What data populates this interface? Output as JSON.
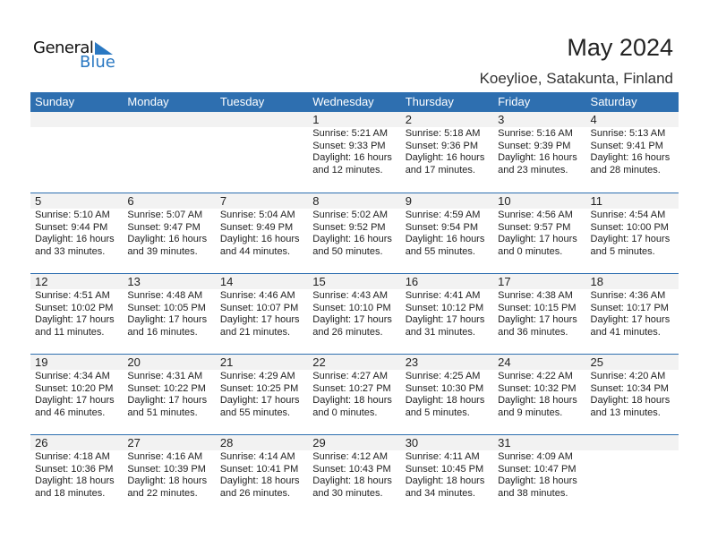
{
  "logo": {
    "line1": "General",
    "line2": "Blue"
  },
  "title": "May 2024",
  "location": "Koeylioe, Satakunta, Finland",
  "colors": {
    "accent": "#2e6fb0",
    "date_band": "#f2f2f2"
  },
  "weekdays": [
    "Sunday",
    "Monday",
    "Tuesday",
    "Wednesday",
    "Thursday",
    "Friday",
    "Saturday"
  ],
  "weeks": [
    [
      null,
      null,
      null,
      {
        "day": "1",
        "sunrise": "Sunrise: 5:21 AM",
        "sunset": "Sunset: 9:33 PM",
        "daylight1": "Daylight: 16 hours",
        "daylight2": "and 12 minutes."
      },
      {
        "day": "2",
        "sunrise": "Sunrise: 5:18 AM",
        "sunset": "Sunset: 9:36 PM",
        "daylight1": "Daylight: 16 hours",
        "daylight2": "and 17 minutes."
      },
      {
        "day": "3",
        "sunrise": "Sunrise: 5:16 AM",
        "sunset": "Sunset: 9:39 PM",
        "daylight1": "Daylight: 16 hours",
        "daylight2": "and 23 minutes."
      },
      {
        "day": "4",
        "sunrise": "Sunrise: 5:13 AM",
        "sunset": "Sunset: 9:41 PM",
        "daylight1": "Daylight: 16 hours",
        "daylight2": "and 28 minutes."
      }
    ],
    [
      {
        "day": "5",
        "sunrise": "Sunrise: 5:10 AM",
        "sunset": "Sunset: 9:44 PM",
        "daylight1": "Daylight: 16 hours",
        "daylight2": "and 33 minutes."
      },
      {
        "day": "6",
        "sunrise": "Sunrise: 5:07 AM",
        "sunset": "Sunset: 9:47 PM",
        "daylight1": "Daylight: 16 hours",
        "daylight2": "and 39 minutes."
      },
      {
        "day": "7",
        "sunrise": "Sunrise: 5:04 AM",
        "sunset": "Sunset: 9:49 PM",
        "daylight1": "Daylight: 16 hours",
        "daylight2": "and 44 minutes."
      },
      {
        "day": "8",
        "sunrise": "Sunrise: 5:02 AM",
        "sunset": "Sunset: 9:52 PM",
        "daylight1": "Daylight: 16 hours",
        "daylight2": "and 50 minutes."
      },
      {
        "day": "9",
        "sunrise": "Sunrise: 4:59 AM",
        "sunset": "Sunset: 9:54 PM",
        "daylight1": "Daylight: 16 hours",
        "daylight2": "and 55 minutes."
      },
      {
        "day": "10",
        "sunrise": "Sunrise: 4:56 AM",
        "sunset": "Sunset: 9:57 PM",
        "daylight1": "Daylight: 17 hours",
        "daylight2": "and 0 minutes."
      },
      {
        "day": "11",
        "sunrise": "Sunrise: 4:54 AM",
        "sunset": "Sunset: 10:00 PM",
        "daylight1": "Daylight: 17 hours",
        "daylight2": "and 5 minutes."
      }
    ],
    [
      {
        "day": "12",
        "sunrise": "Sunrise: 4:51 AM",
        "sunset": "Sunset: 10:02 PM",
        "daylight1": "Daylight: 17 hours",
        "daylight2": "and 11 minutes."
      },
      {
        "day": "13",
        "sunrise": "Sunrise: 4:48 AM",
        "sunset": "Sunset: 10:05 PM",
        "daylight1": "Daylight: 17 hours",
        "daylight2": "and 16 minutes."
      },
      {
        "day": "14",
        "sunrise": "Sunrise: 4:46 AM",
        "sunset": "Sunset: 10:07 PM",
        "daylight1": "Daylight: 17 hours",
        "daylight2": "and 21 minutes."
      },
      {
        "day": "15",
        "sunrise": "Sunrise: 4:43 AM",
        "sunset": "Sunset: 10:10 PM",
        "daylight1": "Daylight: 17 hours",
        "daylight2": "and 26 minutes."
      },
      {
        "day": "16",
        "sunrise": "Sunrise: 4:41 AM",
        "sunset": "Sunset: 10:12 PM",
        "daylight1": "Daylight: 17 hours",
        "daylight2": "and 31 minutes."
      },
      {
        "day": "17",
        "sunrise": "Sunrise: 4:38 AM",
        "sunset": "Sunset: 10:15 PM",
        "daylight1": "Daylight: 17 hours",
        "daylight2": "and 36 minutes."
      },
      {
        "day": "18",
        "sunrise": "Sunrise: 4:36 AM",
        "sunset": "Sunset: 10:17 PM",
        "daylight1": "Daylight: 17 hours",
        "daylight2": "and 41 minutes."
      }
    ],
    [
      {
        "day": "19",
        "sunrise": "Sunrise: 4:34 AM",
        "sunset": "Sunset: 10:20 PM",
        "daylight1": "Daylight: 17 hours",
        "daylight2": "and 46 minutes."
      },
      {
        "day": "20",
        "sunrise": "Sunrise: 4:31 AM",
        "sunset": "Sunset: 10:22 PM",
        "daylight1": "Daylight: 17 hours",
        "daylight2": "and 51 minutes."
      },
      {
        "day": "21",
        "sunrise": "Sunrise: 4:29 AM",
        "sunset": "Sunset: 10:25 PM",
        "daylight1": "Daylight: 17 hours",
        "daylight2": "and 55 minutes."
      },
      {
        "day": "22",
        "sunrise": "Sunrise: 4:27 AM",
        "sunset": "Sunset: 10:27 PM",
        "daylight1": "Daylight: 18 hours",
        "daylight2": "and 0 minutes."
      },
      {
        "day": "23",
        "sunrise": "Sunrise: 4:25 AM",
        "sunset": "Sunset: 10:30 PM",
        "daylight1": "Daylight: 18 hours",
        "daylight2": "and 5 minutes."
      },
      {
        "day": "24",
        "sunrise": "Sunrise: 4:22 AM",
        "sunset": "Sunset: 10:32 PM",
        "daylight1": "Daylight: 18 hours",
        "daylight2": "and 9 minutes."
      },
      {
        "day": "25",
        "sunrise": "Sunrise: 4:20 AM",
        "sunset": "Sunset: 10:34 PM",
        "daylight1": "Daylight: 18 hours",
        "daylight2": "and 13 minutes."
      }
    ],
    [
      {
        "day": "26",
        "sunrise": "Sunrise: 4:18 AM",
        "sunset": "Sunset: 10:36 PM",
        "daylight1": "Daylight: 18 hours",
        "daylight2": "and 18 minutes."
      },
      {
        "day": "27",
        "sunrise": "Sunrise: 4:16 AM",
        "sunset": "Sunset: 10:39 PM",
        "daylight1": "Daylight: 18 hours",
        "daylight2": "and 22 minutes."
      },
      {
        "day": "28",
        "sunrise": "Sunrise: 4:14 AM",
        "sunset": "Sunset: 10:41 PM",
        "daylight1": "Daylight: 18 hours",
        "daylight2": "and 26 minutes."
      },
      {
        "day": "29",
        "sunrise": "Sunrise: 4:12 AM",
        "sunset": "Sunset: 10:43 PM",
        "daylight1": "Daylight: 18 hours",
        "daylight2": "and 30 minutes."
      },
      {
        "day": "30",
        "sunrise": "Sunrise: 4:11 AM",
        "sunset": "Sunset: 10:45 PM",
        "daylight1": "Daylight: 18 hours",
        "daylight2": "and 34 minutes."
      },
      {
        "day": "31",
        "sunrise": "Sunrise: 4:09 AM",
        "sunset": "Sunset: 10:47 PM",
        "daylight1": "Daylight: 18 hours",
        "daylight2": "and 38 minutes."
      },
      null
    ]
  ]
}
